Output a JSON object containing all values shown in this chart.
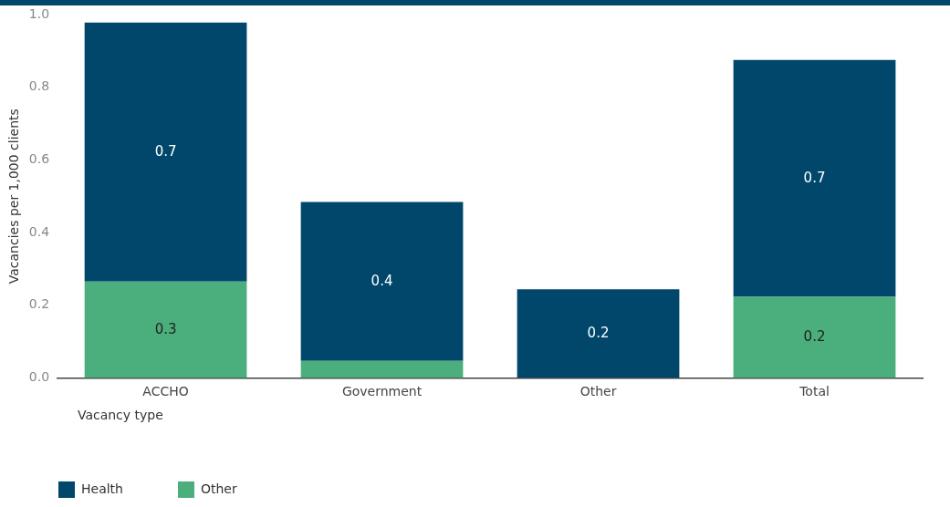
{
  "chart_data": {
    "type": "bar",
    "stacked": true,
    "ylabel": "Vacancies per 1,000 clients",
    "legend_title": "Vacancy type",
    "legend": "bottom left",
    "grid": false,
    "categories": [
      "ACCHO",
      "Government",
      "Other",
      "Total"
    ],
    "ylim": [
      0,
      1.0
    ],
    "yticks": [
      {
        "value": 0,
        "label": "0.0"
      },
      0.2,
      0.4,
      0.6,
      0.8,
      {
        "value": 1,
        "label": "1.0"
      }
    ],
    "series": [
      {
        "name": "Other",
        "color": "#4bae7d",
        "values": [
          0.265,
          0.047,
          0,
          0.223
        ],
        "value_labels": [
          "0.3",
          null,
          null,
          "0.2"
        ]
      },
      {
        "name": "Health",
        "color": "#00476b",
        "values": [
          0.713,
          0.437,
          0.244,
          0.652
        ],
        "value_labels": [
          "0.7",
          "0.4",
          "0.2",
          "0.7"
        ]
      }
    ]
  }
}
